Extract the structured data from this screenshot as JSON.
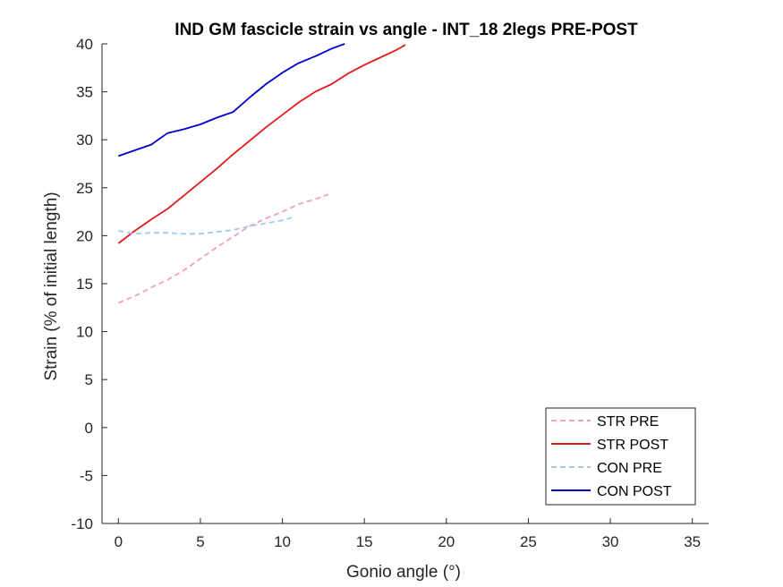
{
  "chart_data": {
    "type": "line",
    "title": "IND GM fascicle strain vs angle - INT_18 2legs PRE-POST",
    "xlabel": "Gonio angle (°)",
    "ylabel": "Strain (% of initial length)",
    "xlim": [
      -1,
      36
    ],
    "ylim": [
      -10,
      40
    ],
    "xticks": [
      0,
      5,
      10,
      15,
      20,
      25,
      30,
      35
    ],
    "yticks": [
      -10,
      -5,
      0,
      5,
      10,
      15,
      20,
      25,
      30,
      35,
      40
    ],
    "grid": false,
    "legend_position": "bottom-right",
    "series": [
      {
        "name": "STR PRE",
        "color": "#f4a0c0",
        "dash": "dashed",
        "x": [
          0,
          1,
          2,
          3,
          4,
          5,
          6,
          7,
          8,
          9,
          10,
          11,
          12,
          12.8
        ],
        "y": [
          13.0,
          13.7,
          14.6,
          15.4,
          16.4,
          17.6,
          18.8,
          19.9,
          21.0,
          21.8,
          22.5,
          23.3,
          23.8,
          24.3
        ]
      },
      {
        "name": "STR POST",
        "color": "#e31a1c",
        "dash": "solid",
        "x": [
          0,
          1,
          2,
          3,
          4,
          5,
          6,
          7,
          8,
          9,
          10,
          11,
          12,
          13,
          14,
          15,
          16,
          17,
          17.5
        ],
        "y": [
          19.2,
          20.5,
          21.7,
          22.8,
          24.2,
          25.6,
          27.0,
          28.5,
          29.9,
          31.3,
          32.6,
          33.9,
          35.0,
          35.8,
          36.9,
          37.8,
          38.6,
          39.4,
          39.9
        ]
      },
      {
        "name": "CON PRE",
        "color": "#9ecbf0",
        "dash": "dashed",
        "x": [
          0,
          1,
          2,
          3,
          4,
          5,
          6,
          7,
          8,
          9,
          10,
          10.8
        ],
        "y": [
          20.5,
          20.2,
          20.3,
          20.3,
          20.2,
          20.2,
          20.4,
          20.6,
          21.0,
          21.3,
          21.6,
          22.0
        ]
      },
      {
        "name": "CON POST",
        "color": "#0000c8",
        "dash": "solid",
        "x": [
          0,
          1,
          2,
          3,
          4,
          5,
          6,
          7,
          8,
          9,
          10,
          11,
          12,
          13,
          13.8
        ],
        "y": [
          28.3,
          28.9,
          29.5,
          30.7,
          31.1,
          31.6,
          32.3,
          32.9,
          34.4,
          35.8,
          37.0,
          38.0,
          38.7,
          39.5,
          40.0
        ]
      }
    ]
  }
}
